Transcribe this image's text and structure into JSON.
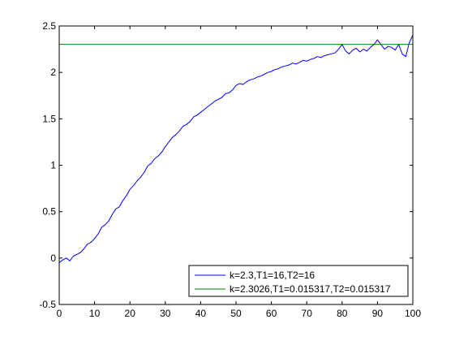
{
  "chart_data": {
    "type": "line",
    "title": "",
    "xlabel": "",
    "ylabel": "",
    "xlim": [
      0,
      100
    ],
    "ylim": [
      -0.5,
      2.5
    ],
    "xticks": [
      0,
      10,
      20,
      30,
      40,
      50,
      60,
      70,
      80,
      90,
      100
    ],
    "yticks": [
      -0.5,
      0,
      0.5,
      1,
      1.5,
      2,
      2.5
    ],
    "grid": false,
    "legend_position": "bottom-right",
    "series": [
      {
        "name": "k=2.3,T1=16,T2=16",
        "color": "#0000ff",
        "x": [
          0,
          1,
          2,
          3,
          4,
          5,
          6,
          7,
          8,
          9,
          10,
          11,
          12,
          13,
          14,
          15,
          16,
          17,
          18,
          19,
          20,
          21,
          22,
          23,
          24,
          25,
          26,
          27,
          28,
          29,
          30,
          31,
          32,
          33,
          34,
          35,
          36,
          37,
          38,
          39,
          40,
          41,
          42,
          43,
          44,
          45,
          46,
          47,
          48,
          49,
          50,
          51,
          52,
          53,
          54,
          55,
          56,
          57,
          58,
          59,
          60,
          61,
          62,
          63,
          64,
          65,
          66,
          67,
          68,
          69,
          70,
          71,
          72,
          73,
          74,
          75,
          76,
          77,
          78,
          79,
          80,
          81,
          82,
          83,
          84,
          85,
          86,
          87,
          88,
          89,
          90,
          91,
          92,
          93,
          94,
          95,
          96,
          97,
          98,
          99,
          100
        ],
        "y": [
          -0.05,
          -0.02,
          0.0,
          -0.03,
          0.02,
          0.04,
          0.06,
          0.1,
          0.15,
          0.17,
          0.21,
          0.26,
          0.33,
          0.36,
          0.4,
          0.47,
          0.53,
          0.55,
          0.62,
          0.67,
          0.74,
          0.78,
          0.83,
          0.87,
          0.92,
          0.99,
          1.02,
          1.07,
          1.1,
          1.14,
          1.2,
          1.25,
          1.3,
          1.33,
          1.37,
          1.42,
          1.44,
          1.47,
          1.52,
          1.54,
          1.57,
          1.6,
          1.63,
          1.66,
          1.69,
          1.71,
          1.73,
          1.77,
          1.78,
          1.81,
          1.86,
          1.88,
          1.87,
          1.9,
          1.92,
          1.93,
          1.95,
          1.96,
          1.98,
          2.0,
          2.01,
          2.03,
          2.04,
          2.06,
          2.07,
          2.08,
          2.1,
          2.09,
          2.11,
          2.13,
          2.12,
          2.14,
          2.15,
          2.17,
          2.16,
          2.18,
          2.19,
          2.2,
          2.21,
          2.25,
          2.3,
          2.23,
          2.2,
          2.24,
          2.26,
          2.22,
          2.25,
          2.23,
          2.27,
          2.3,
          2.35,
          2.3,
          2.25,
          2.28,
          2.27,
          2.24,
          2.3,
          2.2,
          2.17,
          2.32,
          2.4
        ]
      },
      {
        "name": "k=2.3026,T1=0.015317,T2=0.015317",
        "color": "#008000",
        "x": [
          0,
          100
        ],
        "y": [
          2.3026,
          2.3026
        ]
      }
    ]
  }
}
